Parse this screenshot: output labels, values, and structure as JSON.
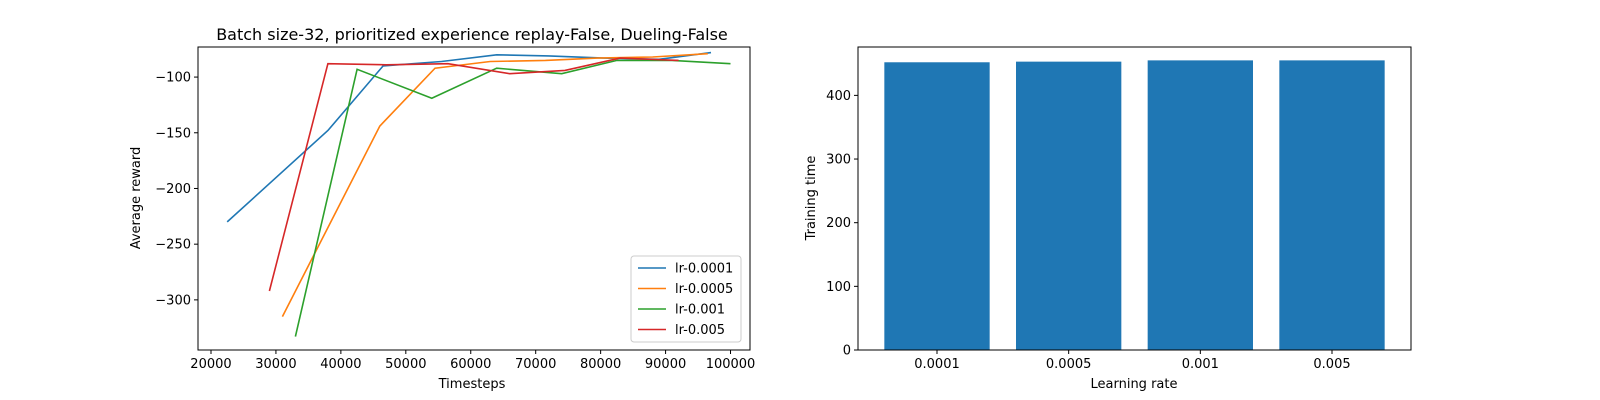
{
  "chart_data": [
    {
      "type": "line",
      "title": "Batch size-32, prioritized experience replay-False, Dueling-False",
      "xlabel": "Timesteps",
      "ylabel": "Average reward",
      "xlim": [
        18000,
        103000
      ],
      "ylim": [
        -345,
        -73
      ],
      "xticks": [
        20000,
        30000,
        40000,
        50000,
        60000,
        70000,
        80000,
        90000,
        100000
      ],
      "xtick_labels": [
        "20000",
        "30000",
        "40000",
        "50000",
        "60000",
        "70000",
        "80000",
        "90000",
        "100000"
      ],
      "yticks": [
        -300,
        -250,
        -200,
        -150,
        -100
      ],
      "ytick_labels": [
        "−300",
        "−250",
        "−200",
        "−150",
        "−100"
      ],
      "grid": false,
      "legend": "lower-right",
      "series": [
        {
          "name": "lr-0.0001",
          "color": "#1f77b4",
          "x": [
            22500,
            38000,
            46500,
            55500,
            64000,
            72000,
            80500,
            89000,
            97000
          ],
          "y": [
            -230,
            -148,
            -90,
            -86,
            -80,
            -81,
            -83,
            -84,
            -78
          ]
        },
        {
          "name": "lr-0.0005",
          "color": "#ff7f0e",
          "x": [
            31000,
            46000,
            54500,
            63000,
            71500,
            79500,
            88000,
            96500
          ],
          "y": [
            -315,
            -144,
            -92,
            -86,
            -85,
            -83,
            -82,
            -79
          ]
        },
        {
          "name": "lr-0.001",
          "color": "#2ca02c",
          "x": [
            33000,
            42500,
            54000,
            64000,
            74000,
            82500,
            91000,
            100000
          ],
          "y": [
            -333,
            -93,
            -119,
            -92,
            -97,
            -85,
            -85,
            -88
          ]
        },
        {
          "name": "lr-0.005",
          "color": "#d62728",
          "x": [
            29000,
            38000,
            47000,
            56500,
            66000,
            74500,
            83000,
            92000
          ],
          "y": [
            -292,
            -88,
            -89,
            -88,
            -97,
            -94,
            -83,
            -85
          ]
        }
      ]
    },
    {
      "type": "bar",
      "title": "",
      "xlabel": "Learning rate",
      "ylabel": "Training time",
      "categories": [
        "0.0001",
        "0.0005",
        "0.001",
        "0.005"
      ],
      "values": [
        452,
        453,
        455,
        455
      ],
      "ylim": [
        0,
        476
      ],
      "yticks": [
        0,
        100,
        200,
        300,
        400
      ],
      "ytick_labels": [
        "0",
        "100",
        "200",
        "300",
        "400"
      ],
      "color": "#1f77b4",
      "grid": false
    }
  ]
}
